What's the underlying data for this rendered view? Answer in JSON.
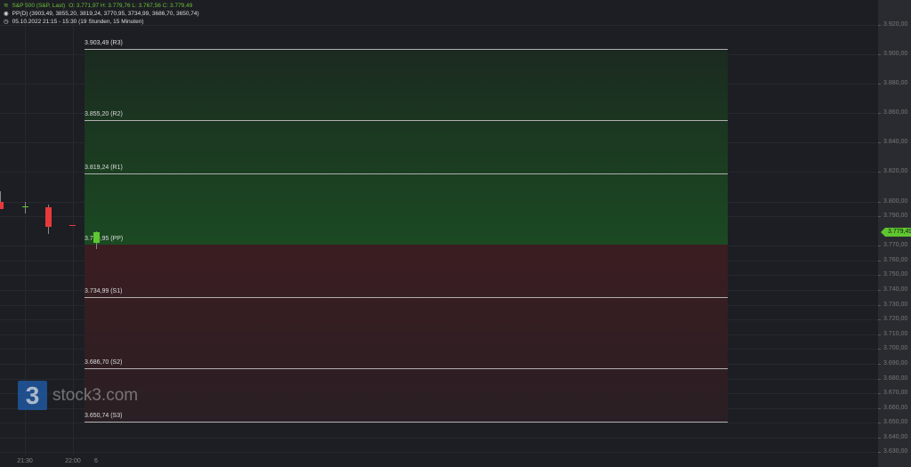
{
  "legend": {
    "instrument": "S&P 500 (S&P, Last)",
    "ohlc": "O: 3.771,97  H: 3.779,76  L: 3.767,56  C: 3.779,49",
    "indicator": "PP(D)  (3903,49, 3855,20, 3819,24, 3770,95, 3734,99, 3686,70, 3650,74)",
    "period": "05.10.2022 21:15 - 15:30   (19 Stunden, 15 Minuten)"
  },
  "levels": [
    {
      "name": "R3",
      "value": 3903.49,
      "label": "3.903,49 (R3)"
    },
    {
      "name": "R2",
      "value": 3855.2,
      "label": "3.855,20 (R2)"
    },
    {
      "name": "R1",
      "value": 3819.24,
      "label": "3.819,24 (R1)"
    },
    {
      "name": "PP",
      "value": 3770.95,
      "label": "3.770,95 (PP)"
    },
    {
      "name": "S1",
      "value": 3734.99,
      "label": "3.734,99 (S1)"
    },
    {
      "name": "S2",
      "value": 3686.7,
      "label": "3.686,70 (S2)"
    },
    {
      "name": "S3",
      "value": 3650.74,
      "label": "3.650,74 (S3)"
    }
  ],
  "y_axis": {
    "ticks": [
      {
        "v": 3920,
        "t": "3.920,00"
      },
      {
        "v": 3900,
        "t": "3.900,00"
      },
      {
        "v": 3880,
        "t": "3.880,00"
      },
      {
        "v": 3860,
        "t": "3.860,00"
      },
      {
        "v": 3840,
        "t": "3.840,00"
      },
      {
        "v": 3820,
        "t": "3.820,00"
      },
      {
        "v": 3800,
        "t": "3.800,00"
      },
      {
        "v": 3790,
        "t": "3.790,00"
      },
      {
        "v": 3770,
        "t": "3.770,00"
      },
      {
        "v": 3760,
        "t": "3.760,00"
      },
      {
        "v": 3750,
        "t": "3.750,00"
      },
      {
        "v": 3740,
        "t": "3.740,00"
      },
      {
        "v": 3730,
        "t": "3.730,00"
      },
      {
        "v": 3720,
        "t": "3.720,00"
      },
      {
        "v": 3710,
        "t": "3.710,00"
      },
      {
        "v": 3700,
        "t": "3.700,00"
      },
      {
        "v": 3690,
        "t": "3.690,00"
      },
      {
        "v": 3680,
        "t": "3.680,00"
      },
      {
        "v": 3670,
        "t": "3.670,00"
      },
      {
        "v": 3660,
        "t": "3.660,00"
      },
      {
        "v": 3650,
        "t": "3.650,00"
      },
      {
        "v": 3640,
        "t": "3.640,00"
      },
      {
        "v": 3630,
        "t": "3.630,00"
      }
    ],
    "last_price": 3779.49,
    "last_price_label": "3.779,49"
  },
  "x_axis": [
    "21:30",
    "22:00",
    "6"
  ],
  "candles": [
    {
      "o": 3800,
      "c": 3795,
      "h": 3807,
      "l": 3795
    },
    {
      "o": 3797,
      "c": 3797,
      "h": 3800,
      "l": 3792
    },
    {
      "o": 3796,
      "c": 3783,
      "h": 3798,
      "l": 3778
    },
    {
      "o": 3784,
      "c": 3783.5,
      "h": 3784,
      "l": 3783.5
    },
    {
      "o": 3771.97,
      "c": 3779.49,
      "h": 3779.76,
      "l": 3767.56
    }
  ],
  "colors": {
    "up": "#5fc72f",
    "down": "#e83a3a",
    "resistance_zone": "#1b4a22",
    "support_zone": "#3b1d21",
    "accent": "#5fc72f"
  },
  "watermark": "stock3.com"
}
